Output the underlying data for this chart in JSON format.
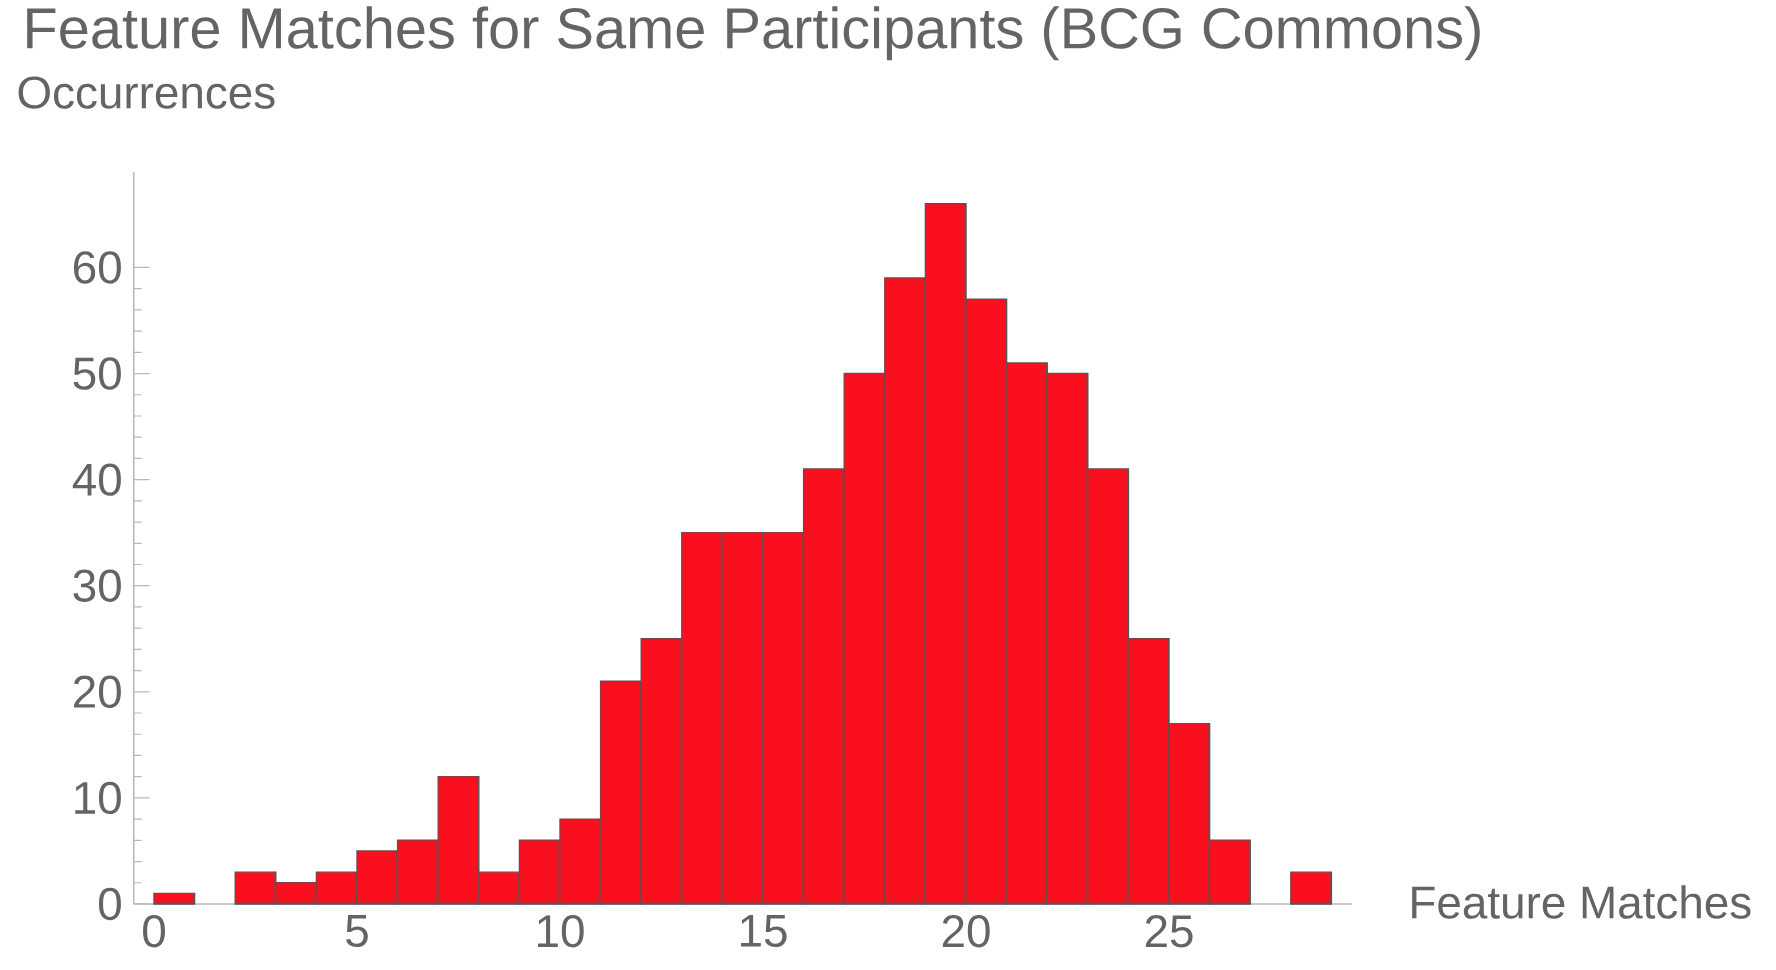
{
  "chart_data": {
    "type": "histogram",
    "title": "Feature Matches for Same Participants (BCG Commons)",
    "xlabel": "Feature Matches",
    "ylabel": "Occurrences",
    "bins": [
      0,
      1,
      2,
      3,
      4,
      5,
      6,
      7,
      8,
      9,
      10,
      11,
      12,
      13,
      14,
      15,
      16,
      17,
      18,
      19,
      20,
      21,
      22,
      23,
      24,
      25,
      26,
      27,
      28,
      29
    ],
    "values": [
      1,
      0,
      3,
      2,
      3,
      5,
      6,
      12,
      3,
      6,
      8,
      21,
      25,
      35,
      35,
      35,
      41,
      50,
      59,
      66,
      57,
      51,
      50,
      41,
      25,
      17,
      6,
      0,
      3
    ],
    "color": "#fa0f1e",
    "xlim": [
      -0.5,
      29.5
    ],
    "ylim": [
      0,
      69
    ],
    "xticks": [
      0,
      5,
      10,
      15,
      20,
      25
    ],
    "yticks": [
      0,
      10,
      20,
      30,
      40,
      50,
      60
    ],
    "grid": false
  }
}
